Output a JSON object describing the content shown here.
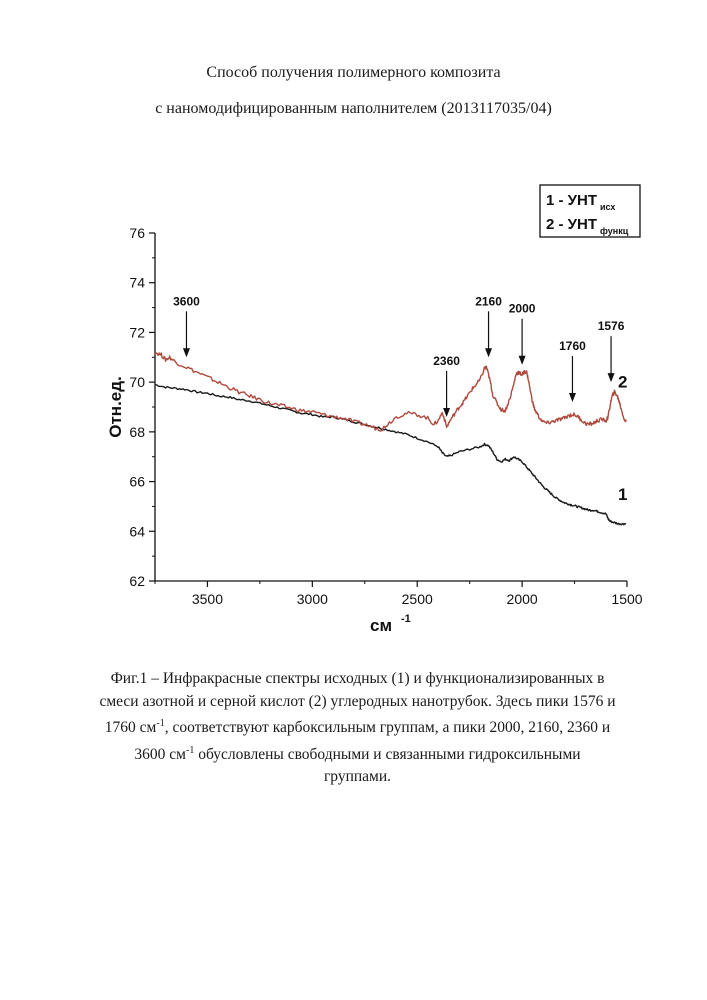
{
  "header": {
    "line1": "Способ получения полимерного композита",
    "line2": "с наномодифицированным наполнителем (2013117035/04)"
  },
  "chart_data": {
    "type": "line",
    "xlabel": "см",
    "xlabel_sup": "-1",
    "ylabel": "Отн.ед.",
    "xlim": [
      3750,
      1500
    ],
    "ylim": [
      62,
      76
    ],
    "x_ticks": [
      "3500",
      "3000",
      "2500",
      "2000",
      "1500"
    ],
    "y_ticks": [
      "62",
      "64",
      "66",
      "68",
      "70",
      "72",
      "74",
      "76"
    ],
    "legend": {
      "position": "top-right",
      "entries": [
        {
          "prefix": "1 - УНТ",
          "sub": "исх"
        },
        {
          "prefix": "2 - УНТ",
          "sub": "функц"
        }
      ]
    },
    "series": [
      {
        "label": "1",
        "color": "#1a1a1a",
        "x": [
          3750,
          3700,
          3650,
          3600,
          3550,
          3500,
          3450,
          3400,
          3350,
          3300,
          3250,
          3200,
          3150,
          3100,
          3050,
          3000,
          2950,
          2900,
          2850,
          2800,
          2750,
          2700,
          2650,
          2600,
          2550,
          2500,
          2450,
          2400,
          2380,
          2360,
          2340,
          2300,
          2250,
          2200,
          2180,
          2160,
          2140,
          2120,
          2100,
          2080,
          2060,
          2040,
          2020,
          2000,
          1980,
          1960,
          1940,
          1920,
          1900,
          1880,
          1860,
          1840,
          1820,
          1800,
          1780,
          1760,
          1740,
          1720,
          1700,
          1680,
          1660,
          1640,
          1620,
          1600,
          1590,
          1580,
          1560,
          1540,
          1520,
          1505
        ],
        "y": [
          69.9,
          69.8,
          69.75,
          69.7,
          69.6,
          69.55,
          69.45,
          69.4,
          69.3,
          69.25,
          69.15,
          69.05,
          68.95,
          68.85,
          68.75,
          68.7,
          68.6,
          68.6,
          68.5,
          68.4,
          68.3,
          68.2,
          68.1,
          68.0,
          67.9,
          67.75,
          67.6,
          67.4,
          67.15,
          67.0,
          67.05,
          67.2,
          67.3,
          67.4,
          67.5,
          67.45,
          67.2,
          66.9,
          66.8,
          66.9,
          66.85,
          67.0,
          66.9,
          66.8,
          66.6,
          66.4,
          66.2,
          66.0,
          65.8,
          65.65,
          65.5,
          65.35,
          65.25,
          65.15,
          65.1,
          65.05,
          65.0,
          64.95,
          64.9,
          64.85,
          64.85,
          64.8,
          64.75,
          64.7,
          64.5,
          64.4,
          64.35,
          64.3,
          64.3,
          64.3
        ]
      },
      {
        "label": "2",
        "color": "#b04a3e",
        "x": [
          3750,
          3720,
          3700,
          3680,
          3650,
          3600,
          3550,
          3500,
          3450,
          3400,
          3350,
          3300,
          3250,
          3200,
          3150,
          3100,
          3050,
          3000,
          2950,
          2900,
          2850,
          2800,
          2750,
          2700,
          2670,
          2650,
          2600,
          2550,
          2500,
          2450,
          2420,
          2400,
          2380,
          2360,
          2340,
          2320,
          2300,
          2280,
          2260,
          2240,
          2220,
          2200,
          2180,
          2170,
          2160,
          2150,
          2140,
          2120,
          2100,
          2080,
          2060,
          2040,
          2030,
          2020,
          2010,
          2000,
          1990,
          1980,
          1970,
          1960,
          1950,
          1940,
          1920,
          1900,
          1880,
          1860,
          1840,
          1820,
          1800,
          1780,
          1760,
          1740,
          1720,
          1700,
          1680,
          1660,
          1640,
          1620,
          1600,
          1590,
          1580,
          1570,
          1560,
          1550,
          1540,
          1530,
          1520,
          1510,
          1505
        ],
        "y": [
          71.2,
          71.1,
          70.9,
          71.0,
          70.8,
          70.6,
          70.4,
          70.2,
          70.0,
          69.8,
          69.6,
          69.45,
          69.3,
          69.15,
          69.05,
          68.95,
          68.85,
          68.8,
          68.7,
          68.6,
          68.55,
          68.4,
          68.3,
          68.15,
          68.1,
          68.25,
          68.6,
          68.75,
          68.7,
          68.55,
          68.3,
          68.45,
          68.8,
          68.2,
          68.5,
          68.75,
          69.0,
          69.2,
          69.45,
          69.7,
          69.9,
          70.1,
          70.55,
          70.6,
          70.3,
          69.95,
          69.5,
          69.15,
          68.9,
          68.85,
          69.3,
          69.9,
          70.3,
          70.4,
          70.35,
          70.3,
          70.4,
          70.45,
          70.1,
          69.6,
          69.2,
          68.9,
          68.6,
          68.4,
          68.35,
          68.4,
          68.45,
          68.5,
          68.55,
          68.65,
          68.7,
          68.65,
          68.5,
          68.35,
          68.3,
          68.35,
          68.45,
          68.5,
          68.45,
          68.6,
          69.1,
          69.45,
          69.6,
          69.5,
          69.3,
          69.0,
          68.7,
          68.4,
          68.5
        ]
      }
    ],
    "annotations": [
      {
        "label": "3600",
        "x": 3600,
        "y": 71.0
      },
      {
        "label": "2360",
        "x": 2360,
        "y": 68.6
      },
      {
        "label": "2160",
        "x": 2160,
        "y": 71.0
      },
      {
        "label": "2000",
        "x": 2000,
        "y": 70.7
      },
      {
        "label": "1760",
        "x": 1760,
        "y": 69.2
      },
      {
        "label": "1576",
        "x": 1576,
        "y": 70.0
      }
    ],
    "grid": false
  },
  "caption": {
    "t1": "Фиг.1 – Инфракрасные спектры исходных (1) и функционализированных в",
    "t2": "смеси азотной и серной кислот (2) углеродных нанотрубок. Здесь пики 1576 и",
    "t3a": "1760 см",
    "sup1": "-1",
    "t3b": ",  соответствуют карбоксильным группам, а пики 2000, 2160, 2360 и",
    "t4a": "3600 см",
    "sup2": "-1",
    "t4b": " обусловлены свободными и связанными гидроксильными",
    "t5": "группами."
  }
}
